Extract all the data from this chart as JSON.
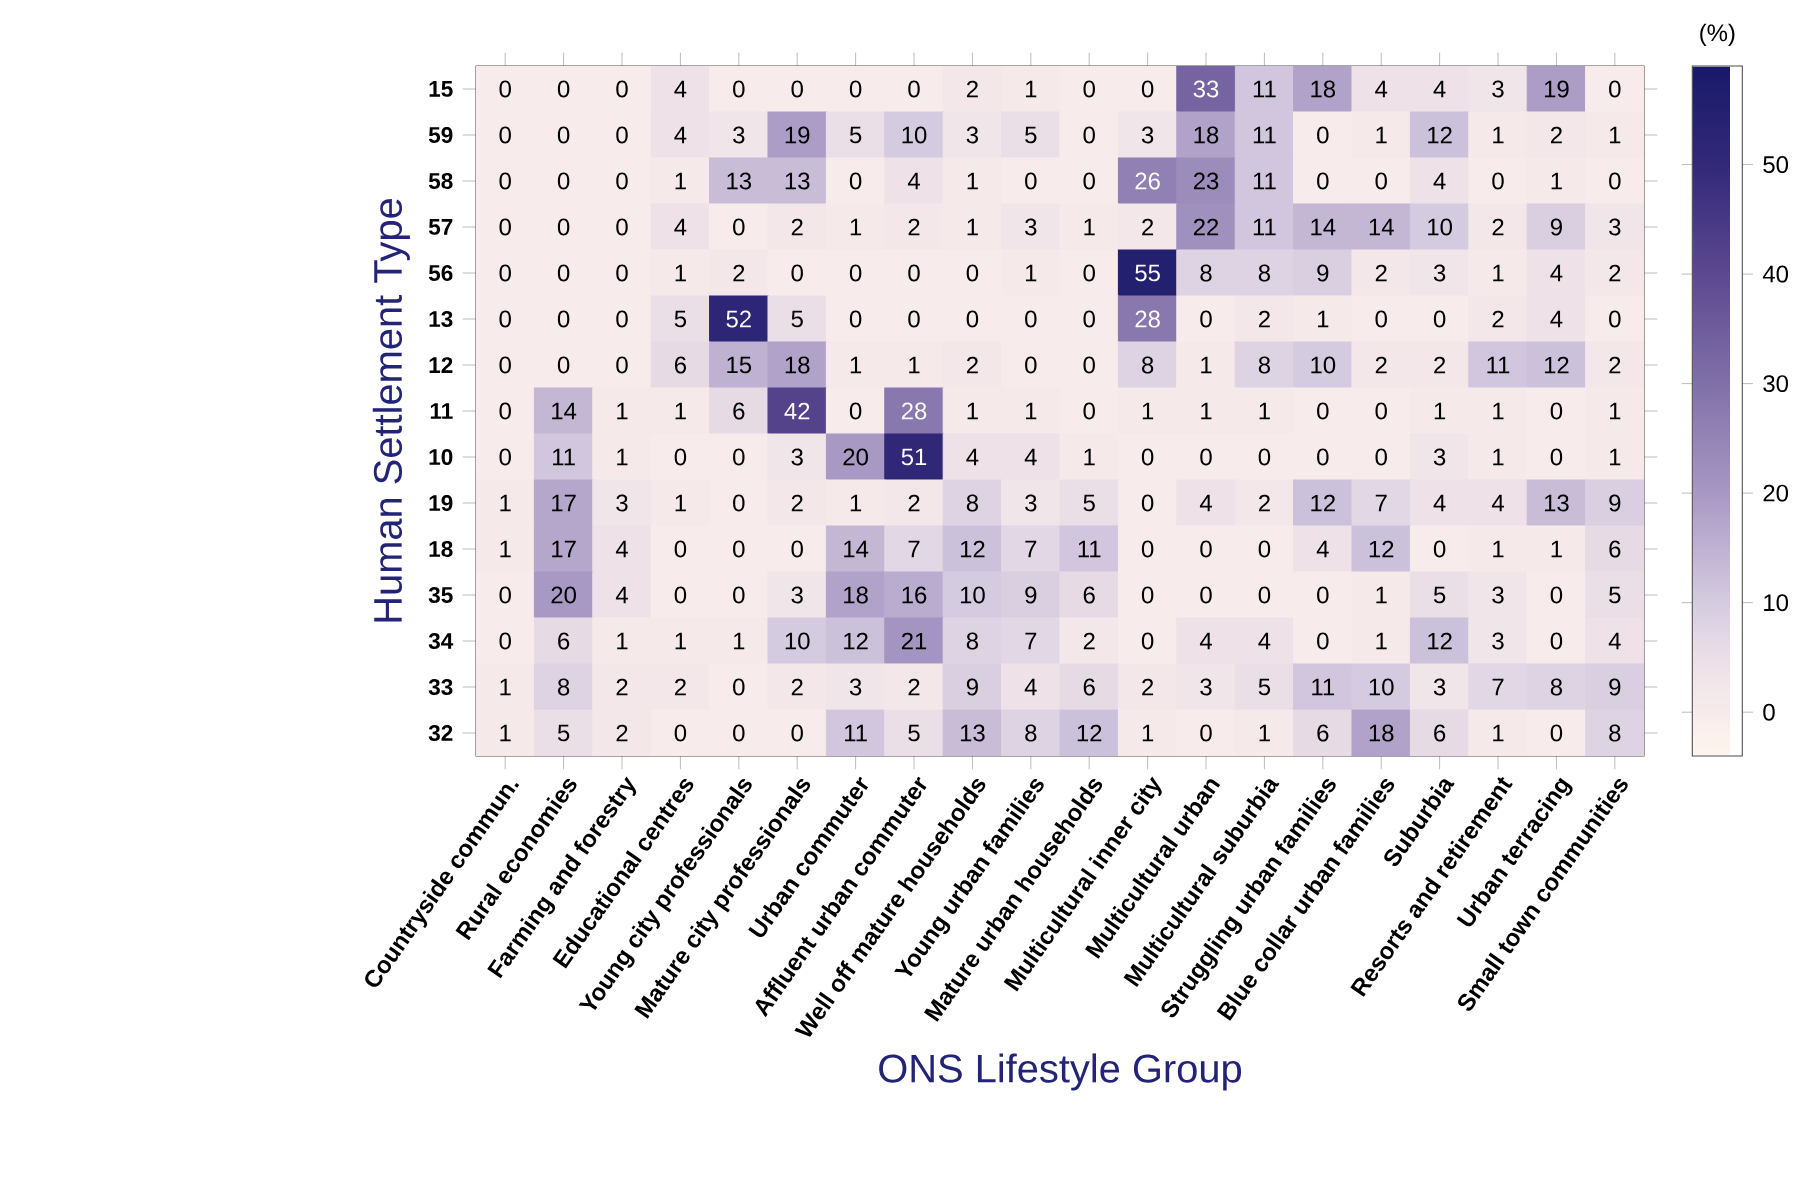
{
  "chart_data": {
    "type": "heatmap",
    "xlabel": "ONS Lifestyle Group",
    "ylabel": "Human Settlement Type",
    "clabel": "(%)",
    "categories": [
      "Countryside commun.",
      "Rural economies",
      "Farming and forestry",
      "Educational centres",
      "Young city professionals",
      "Mature city professionals",
      "Urban commuter",
      "Affluent urban commuter",
      "Well off mature households",
      "Young urban families",
      "Mature urban households",
      "Multicultural inner city",
      "Multicultural urban",
      "Multicultural suburbia",
      "Struggling urban families",
      "Blue collar urban families",
      "Suburbia",
      "Resorts and retirement",
      "Urban terracing",
      "Small town communities"
    ],
    "y_categories": [
      "15",
      "59",
      "58",
      "57",
      "56",
      "13",
      "12",
      "11",
      "10",
      "19",
      "18",
      "35",
      "34",
      "33",
      "32"
    ],
    "cells": [
      [
        0,
        0,
        0,
        4,
        0,
        0,
        0,
        0,
        2,
        1,
        0,
        0,
        33,
        11,
        18,
        4,
        4,
        3,
        19,
        0
      ],
      [
        0,
        0,
        0,
        4,
        3,
        19,
        5,
        10,
        3,
        5,
        0,
        3,
        18,
        11,
        0,
        1,
        12,
        1,
        2,
        1
      ],
      [
        0,
        0,
        0,
        1,
        13,
        13,
        0,
        4,
        1,
        0,
        0,
        26,
        23,
        11,
        0,
        0,
        4,
        0,
        1,
        0
      ],
      [
        0,
        0,
        0,
        4,
        0,
        2,
        1,
        2,
        1,
        3,
        1,
        2,
        22,
        11,
        14,
        14,
        10,
        2,
        9,
        3
      ],
      [
        0,
        0,
        0,
        1,
        2,
        0,
        0,
        0,
        0,
        1,
        0,
        55,
        8,
        8,
        9,
        2,
        3,
        1,
        4,
        2
      ],
      [
        0,
        0,
        0,
        5,
        52,
        5,
        0,
        0,
        0,
        0,
        0,
        28,
        0,
        2,
        1,
        0,
        0,
        2,
        4,
        0
      ],
      [
        0,
        0,
        0,
        6,
        15,
        18,
        1,
        1,
        2,
        0,
        0,
        8,
        1,
        8,
        10,
        2,
        2,
        11,
        12,
        2
      ],
      [
        0,
        14,
        1,
        1,
        6,
        42,
        0,
        28,
        1,
        1,
        0,
        1,
        1,
        1,
        0,
        0,
        1,
        1,
        0,
        1
      ],
      [
        0,
        11,
        1,
        0,
        0,
        3,
        20,
        51,
        4,
        4,
        1,
        0,
        0,
        0,
        0,
        0,
        3,
        1,
        0,
        1
      ],
      [
        1,
        17,
        3,
        1,
        0,
        2,
        1,
        2,
        8,
        3,
        5,
        0,
        4,
        2,
        12,
        7,
        4,
        4,
        13,
        9
      ],
      [
        1,
        17,
        4,
        0,
        0,
        0,
        14,
        7,
        12,
        7,
        11,
        0,
        0,
        0,
        4,
        12,
        0,
        1,
        1,
        6
      ],
      [
        0,
        20,
        4,
        0,
        0,
        3,
        18,
        16,
        10,
        9,
        6,
        0,
        0,
        0,
        0,
        1,
        5,
        3,
        0,
        5
      ],
      [
        0,
        6,
        1,
        1,
        1,
        10,
        12,
        21,
        8,
        7,
        2,
        0,
        4,
        4,
        0,
        1,
        12,
        3,
        0,
        4
      ],
      [
        1,
        8,
        2,
        2,
        0,
        2,
        3,
        2,
        9,
        4,
        6,
        2,
        3,
        5,
        11,
        10,
        3,
        7,
        8,
        9
      ],
      [
        1,
        5,
        2,
        0,
        0,
        0,
        11,
        5,
        13,
        8,
        12,
        1,
        0,
        1,
        6,
        18,
        6,
        1,
        0,
        8
      ]
    ],
    "clim": [
      -4,
      59
    ],
    "cticks": [
      0,
      10,
      20,
      30,
      40,
      50
    ],
    "data_labels": true
  }
}
